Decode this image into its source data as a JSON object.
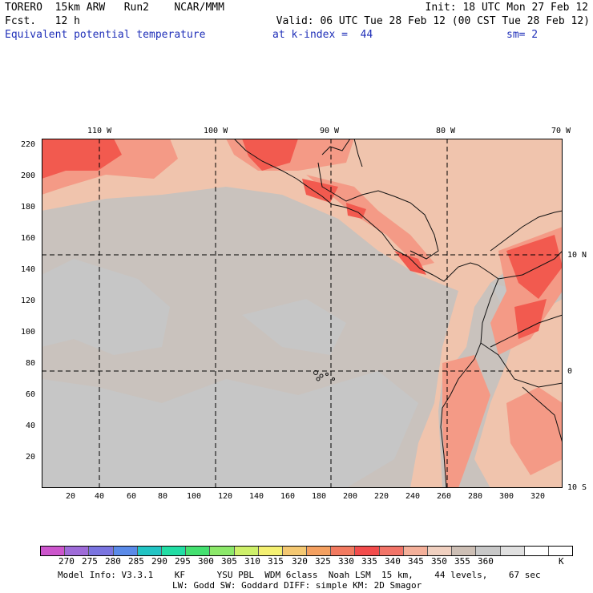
{
  "header": {
    "line1_left": "TORERO  15km ARW   Run2    NCAR/MMM",
    "line1_right": "Init: 18 UTC Mon 27 Feb 12",
    "line2_left": "Fcst.   12 h",
    "line2_right": "Valid: 06 UTC Tue 28 Feb 12 (00 CST Tue 28 Feb 12)",
    "field_name": "Equivalent potential temperature",
    "level_text": "at k-index =  44",
    "smooth_text": "sm= 2"
  },
  "map": {
    "top_lon_labels": [
      "110 W",
      "100 W",
      "90 W",
      "80 W",
      "70 W"
    ],
    "right_lat_labels": [
      "10 N",
      "0",
      "10 S"
    ],
    "y_ticks": [
      "220",
      "200",
      "180",
      "160",
      "140",
      "120",
      "100",
      "80",
      "60",
      "40",
      "20"
    ],
    "x_ticks": [
      "20",
      "40",
      "60",
      "80",
      "100",
      "120",
      "140",
      "160",
      "180",
      "200",
      "220",
      "240",
      "260",
      "280",
      "300",
      "320"
    ],
    "colors": {
      "ocean": "#c9c2bd",
      "ocean_cool": "#c6c6c6",
      "land_warm": "#f0c4ad",
      "warm": "#f49a86",
      "hot": "#f25a4f"
    }
  },
  "colorbar": {
    "colors": [
      "#cc55cc",
      "#9e6bd8",
      "#7a74e0",
      "#5a8ae8",
      "#22c4c4",
      "#22dda4",
      "#44e070",
      "#8ce86a",
      "#cef06a",
      "#f4f072",
      "#f4c872",
      "#f4a060",
      "#f27a60",
      "#f24c4c",
      "#f27468",
      "#f4b09a",
      "#f0d0c0",
      "#cdbfb5",
      "#c8c8c8",
      "#e0e0e0",
      "#ffffff",
      "#ffffff"
    ],
    "labels": [
      "270",
      "275",
      "280",
      "285",
      "290",
      "295",
      "300",
      "305",
      "310",
      "315",
      "320",
      "325",
      "330",
      "335",
      "340",
      "345",
      "350",
      "355",
      "360",
      "K"
    ]
  },
  "footer": {
    "line1": "Model Info: V3.3.1    KF      YSU PBL  WDM 6class  Noah LSM  15 km,    44 levels,    67 sec",
    "line2": "LW: Godd SW: Goddard DIFF: simple KM: 2D Smagor"
  }
}
